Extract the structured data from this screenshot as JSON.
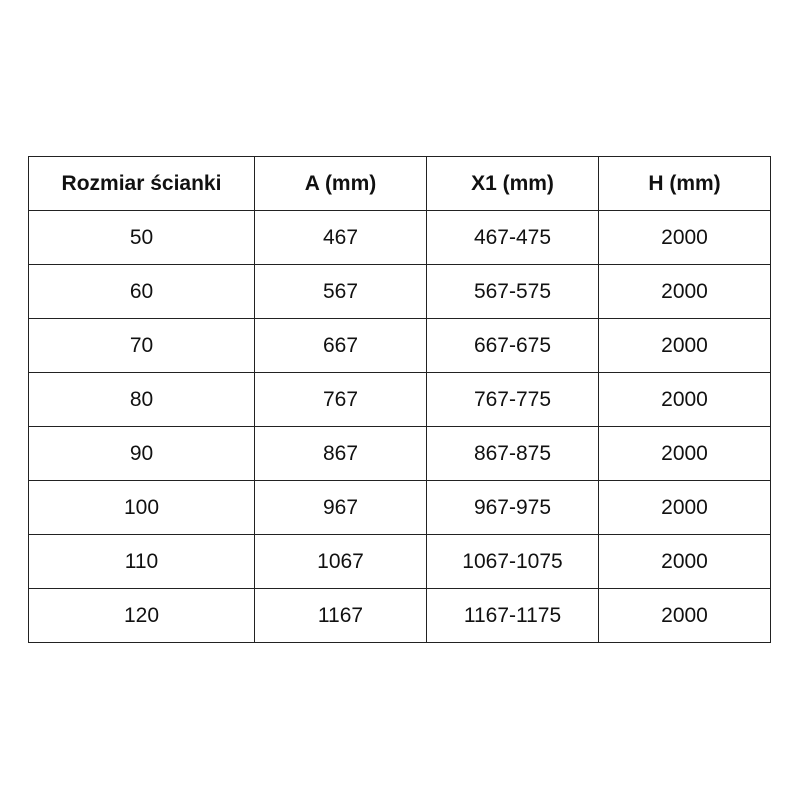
{
  "table": {
    "headers": [
      "Rozmiar ścianki",
      "A (mm)",
      "X1 (mm)",
      "H (mm)"
    ],
    "rows": [
      [
        "50",
        "467",
        "467-475",
        "2000"
      ],
      [
        "60",
        "567",
        "567-575",
        "2000"
      ],
      [
        "70",
        "667",
        "667-675",
        "2000"
      ],
      [
        "80",
        "767",
        "767-775",
        "2000"
      ],
      [
        "90",
        "867",
        "867-875",
        "2000"
      ],
      [
        "100",
        "967",
        "967-975",
        "2000"
      ],
      [
        "110",
        "1067",
        "1067-1075",
        "2000"
      ],
      [
        "120",
        "1167",
        "1167-1175",
        "2000"
      ]
    ]
  }
}
